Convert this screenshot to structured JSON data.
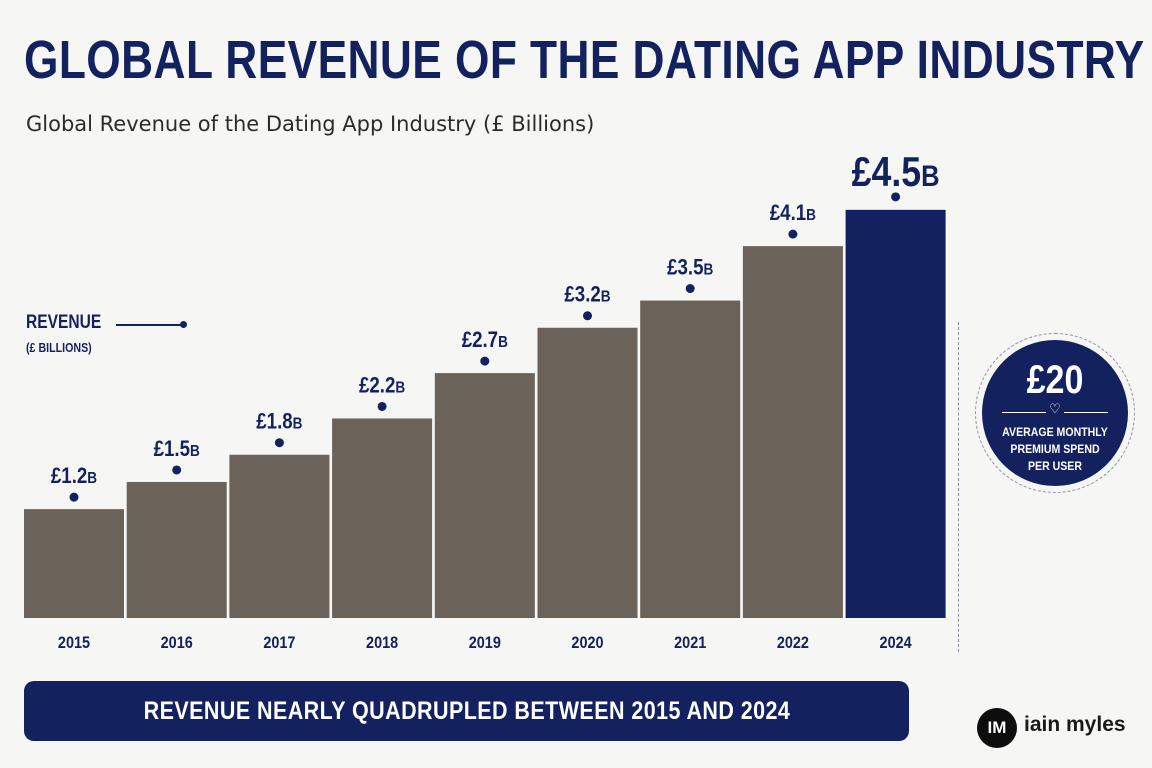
{
  "header": {
    "title": "GLOBAL REVENUE OF THE DATING APP INDUSTRY",
    "subtitle": "Global Revenue of the Dating App Industry (£ Billions)"
  },
  "legend": {
    "label": "REVENUE",
    "sublabel": "(£ BILLIONS)"
  },
  "colors": {
    "navy": "#13225f",
    "bar": "#6b6259",
    "highlight": "#13225f",
    "background": "#f6f6f4"
  },
  "chart_data": {
    "type": "bar",
    "title": "Global Revenue of the Dating App Industry (£ Billions)",
    "xlabel": "",
    "ylabel": "",
    "unit": "£ Billions",
    "categories": [
      "2015",
      "2016",
      "2017",
      "2018",
      "2019",
      "2020",
      "2021",
      "2022",
      "2024"
    ],
    "values": [
      1.2,
      1.5,
      1.8,
      2.2,
      2.7,
      3.2,
      3.5,
      4.1,
      4.5
    ],
    "value_labels": [
      "£1.2",
      "£1.5",
      "£1.8",
      "£2.2",
      "£2.7",
      "£3.2",
      "£3.5",
      "£4.1",
      "£4.5"
    ],
    "value_suffix": "B",
    "highlight_index": 8,
    "grid": false,
    "legend_position": "left"
  },
  "stat_badge": {
    "value": "£20",
    "icon": "heart-icon",
    "line1": "AVERAGE MONTHLY",
    "line2": "PREMIUM SPEND",
    "line3": "PER USER"
  },
  "banner": {
    "text": "REVENUE NEARLY QUADRUPLED BETWEEN 2015 AND 2024"
  },
  "brand": {
    "logo_text": "IM",
    "name": "iain myles"
  }
}
